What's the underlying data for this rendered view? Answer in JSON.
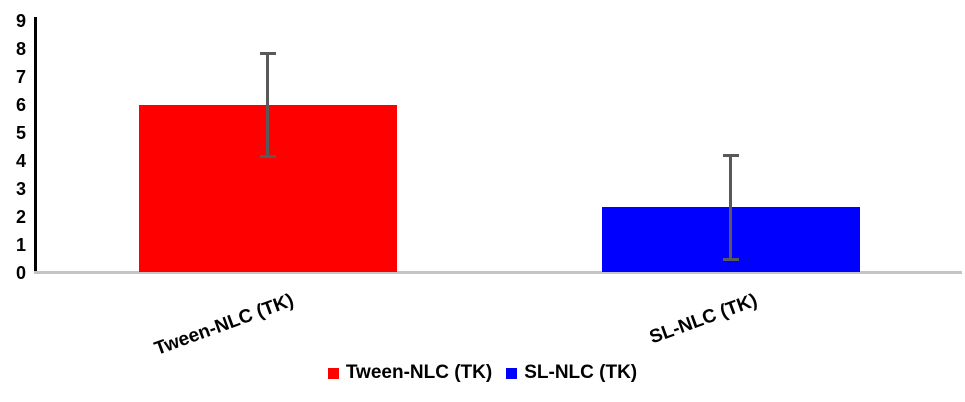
{
  "chart_data": {
    "type": "bar",
    "title": "",
    "xlabel": "",
    "ylabel": "",
    "categories": [
      "Tween-NLC (TK)",
      "SL-NLC (TK)"
    ],
    "values": [
      6.0,
      2.35
    ],
    "errors": [
      1.85,
      1.85
    ],
    "series_colors": [
      "#FF0000",
      "#0000FF"
    ],
    "yticks": [
      0,
      1,
      2,
      3,
      4,
      5,
      6,
      7,
      8,
      9
    ],
    "ylim": [
      0,
      9
    ],
    "grid": false,
    "legend_position": "bottom",
    "legend": [
      {
        "label": "Tween-NLC (TK)",
        "color": "#FF0000"
      },
      {
        "label": "SL-NLC (TK)",
        "color": "#0000FF"
      }
    ],
    "colors": {
      "error_bar": "#595959",
      "y_axis_line": "#000000",
      "x_axis_line": "#C4C4C4",
      "text": "#000000",
      "background": "#FFFFFF"
    }
  }
}
